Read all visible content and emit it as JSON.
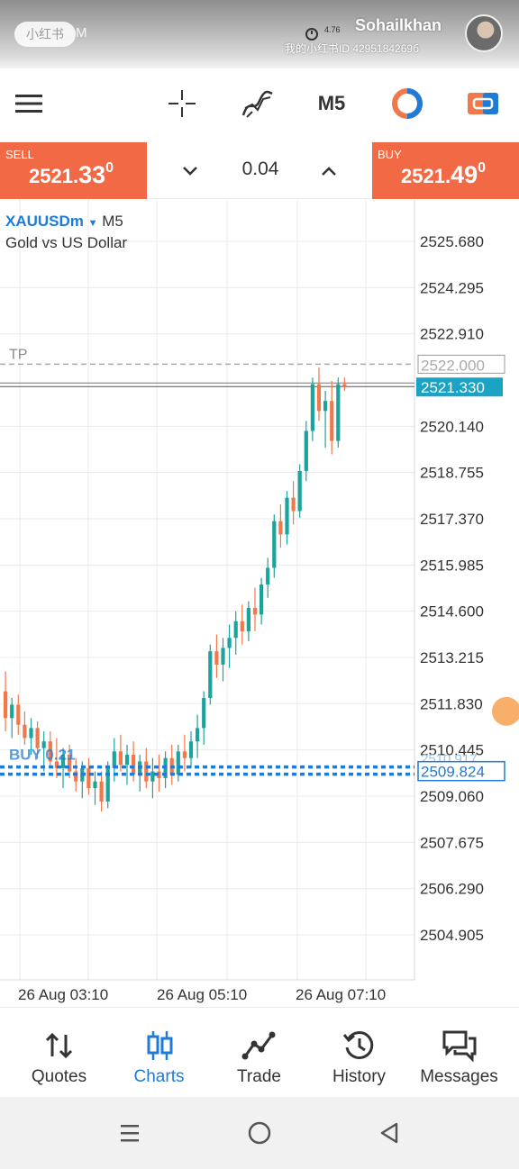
{
  "status": {
    "watermark": "小红书",
    "time_suffix": "M",
    "speed": "4.76",
    "username": "Sohailkhan",
    "user_id": "我的小红书ID 4295184269б"
  },
  "toolbar": {
    "timeframe": "M5",
    "icons": [
      "menu-icon",
      "crosshair-icon",
      "indicators-icon",
      "timeframe",
      "exness-logo",
      "trade-toggle-icon"
    ]
  },
  "trade": {
    "sell_label": "SELL",
    "sell_price_main": "2521.",
    "sell_price_big": "33",
    "sell_price_sup": "0",
    "buy_label": "BUY",
    "buy_price_main": "2521.",
    "buy_price_big": "49",
    "buy_price_sup": "0",
    "lot": "0.04"
  },
  "chart": {
    "symbol": "XAUUSDm",
    "timeframe": "M5",
    "description": "Gold vs US Dollar",
    "tp_label": "TP",
    "tp_value": "2522.000",
    "bid_value": "2521.330",
    "order_label": "BUY 0.21",
    "order_value": "2509.824",
    "hidden_tick": "2510.917",
    "y_ticks": [
      "2525.680",
      "2524.295",
      "2522.910",
      "2520.140",
      "2518.755",
      "2517.370",
      "2515.985",
      "2514.600",
      "2513.215",
      "2511.830",
      "2510.445",
      "2509.060",
      "2507.675",
      "2506.290",
      "2504.905"
    ],
    "x_ticks": [
      "26 Aug 03:10",
      "26 Aug 05:10",
      "26 Aug 07:10"
    ],
    "colors": {
      "bull": "#1ba39c",
      "bear": "#f0784a",
      "accent": "#1e7bd6",
      "grid": "#ebebeb"
    }
  },
  "chart_data": {
    "type": "candlestick",
    "ylim": [
      2504.0,
      2526.5
    ],
    "ohlc": [
      [
        2512.2,
        2512.8,
        2511.0,
        2511.4
      ],
      [
        2511.4,
        2512.0,
        2510.8,
        2511.8
      ],
      [
        2511.8,
        2512.1,
        2510.9,
        2511.2
      ],
      [
        2511.2,
        2511.6,
        2510.6,
        2510.8
      ],
      [
        2510.8,
        2511.4,
        2510.3,
        2511.1
      ],
      [
        2511.1,
        2511.3,
        2510.2,
        2510.5
      ],
      [
        2510.5,
        2511.0,
        2509.8,
        2510.7
      ],
      [
        2510.7,
        2511.0,
        2509.9,
        2510.1
      ],
      [
        2510.1,
        2510.8,
        2509.6,
        2509.9
      ],
      [
        2509.9,
        2510.5,
        2509.3,
        2510.3
      ],
      [
        2510.3,
        2510.6,
        2509.6,
        2509.8
      ],
      [
        2509.8,
        2510.2,
        2509.2,
        2509.5
      ],
      [
        2509.5,
        2510.1,
        2509.0,
        2509.9
      ],
      [
        2509.9,
        2510.2,
        2509.1,
        2509.3
      ],
      [
        2509.3,
        2509.8,
        2508.8,
        2509.5
      ],
      [
        2509.5,
        2509.8,
        2508.6,
        2508.9
      ],
      [
        2508.9,
        2510.1,
        2508.7,
        2509.9
      ],
      [
        2509.9,
        2510.8,
        2509.5,
        2510.4
      ],
      [
        2510.4,
        2510.9,
        2509.8,
        2510.0
      ],
      [
        2510.0,
        2510.6,
        2509.4,
        2510.3
      ],
      [
        2510.3,
        2510.7,
        2509.5,
        2509.7
      ],
      [
        2509.7,
        2510.3,
        2509.2,
        2510.1
      ],
      [
        2510.1,
        2510.5,
        2509.3,
        2509.5
      ],
      [
        2509.5,
        2510.2,
        2509.0,
        2509.8
      ],
      [
        2509.8,
        2510.3,
        2509.2,
        2509.6
      ],
      [
        2509.6,
        2510.4,
        2509.3,
        2510.2
      ],
      [
        2510.2,
        2510.6,
        2509.4,
        2509.7
      ],
      [
        2509.7,
        2510.6,
        2509.5,
        2510.4
      ],
      [
        2510.4,
        2510.9,
        2509.8,
        2510.2
      ],
      [
        2510.2,
        2511.0,
        2509.9,
        2510.7
      ],
      [
        2510.7,
        2511.5,
        2510.2,
        2511.1
      ],
      [
        2511.1,
        2512.2,
        2510.6,
        2512.0
      ],
      [
        2512.0,
        2513.6,
        2511.8,
        2513.4
      ],
      [
        2513.4,
        2513.9,
        2512.6,
        2513.0
      ],
      [
        2513.0,
        2513.8,
        2512.5,
        2513.5
      ],
      [
        2513.5,
        2514.2,
        2512.9,
        2513.8
      ],
      [
        2513.8,
        2514.6,
        2513.3,
        2514.3
      ],
      [
        2514.3,
        2514.8,
        2513.6,
        2514.0
      ],
      [
        2514.0,
        2514.9,
        2513.7,
        2514.7
      ],
      [
        2514.7,
        2515.3,
        2514.0,
        2514.5
      ],
      [
        2514.5,
        2515.6,
        2514.2,
        2515.4
      ],
      [
        2515.4,
        2516.2,
        2515.0,
        2515.9
      ],
      [
        2515.9,
        2517.5,
        2515.6,
        2517.3
      ],
      [
        2517.3,
        2517.8,
        2516.5,
        2516.9
      ],
      [
        2516.9,
        2518.2,
        2516.6,
        2518.0
      ],
      [
        2518.0,
        2518.5,
        2517.2,
        2517.6
      ],
      [
        2517.6,
        2519.0,
        2517.4,
        2518.8
      ],
      [
        2518.8,
        2520.3,
        2518.5,
        2520.0
      ],
      [
        2520.0,
        2521.6,
        2519.7,
        2521.4
      ],
      [
        2521.4,
        2521.9,
        2520.3,
        2520.6
      ],
      [
        2520.6,
        2521.2,
        2519.5,
        2520.9
      ],
      [
        2520.9,
        2521.5,
        2519.3,
        2519.7
      ],
      [
        2519.7,
        2521.6,
        2519.5,
        2521.4
      ],
      [
        2521.4,
        2521.6,
        2521.2,
        2521.33
      ]
    ]
  },
  "nav": {
    "items": [
      {
        "label": "Quotes",
        "icon": "quotes-icon"
      },
      {
        "label": "Charts",
        "icon": "charts-icon"
      },
      {
        "label": "Trade",
        "icon": "trade-icon"
      },
      {
        "label": "History",
        "icon": "history-icon"
      },
      {
        "label": "Messages",
        "icon": "messages-icon"
      }
    ],
    "active": "Charts"
  }
}
